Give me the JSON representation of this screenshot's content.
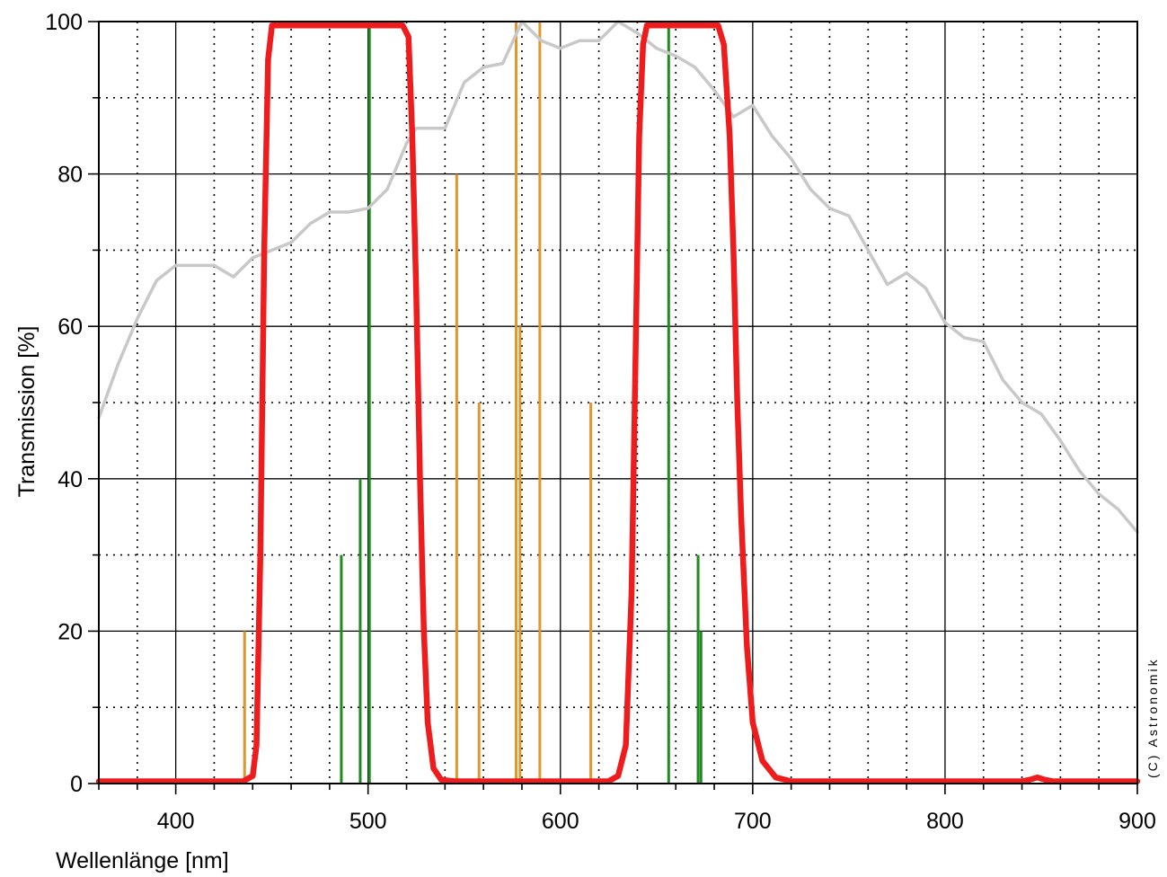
{
  "chart_data": {
    "type": "line",
    "title": "",
    "xlabel": "Wellenlänge [nm]",
    "ylabel": "Transmission [%]",
    "xlim": [
      360,
      900
    ],
    "ylim": [
      0,
      100
    ],
    "x_ticks": [
      400,
      500,
      600,
      700,
      800,
      900
    ],
    "y_ticks": [
      0,
      20,
      40,
      60,
      80,
      100
    ],
    "x_tick_labels": [
      "400",
      "500",
      "600",
      "700",
      "800",
      "900"
    ],
    "y_tick_labels": [
      "0",
      "20",
      "40",
      "60",
      "80",
      "100"
    ],
    "grid": {
      "major": true,
      "minor_dotted": true,
      "x_minor_step": 20,
      "y_minor_step": 10
    },
    "copyright": "(C) Astronomik",
    "colors": {
      "filter": "#ee1c1c",
      "sky_background": "#c8c8c8",
      "emission_orange": "#e0962a",
      "emission_green": "#1f8a1f",
      "grid": "#000000"
    },
    "series": [
      {
        "id": "filter-transmission",
        "x": [
          360,
          435,
          440,
          442,
          444,
          446,
          448,
          450,
          460,
          480,
          500,
          518,
          521,
          523,
          525,
          527,
          529,
          531,
          534,
          538,
          545,
          600,
          625,
          630,
          634,
          637,
          639,
          641,
          643,
          645,
          650,
          670,
          682,
          685,
          688,
          690,
          692,
          694,
          697,
          700,
          705,
          712,
          720,
          760,
          800,
          840,
          844,
          848,
          852,
          856,
          900
        ],
        "y": [
          0.3,
          0.3,
          1,
          5,
          30,
          70,
          95,
          99.5,
          99.5,
          99.5,
          99.5,
          99.5,
          98,
          85,
          65,
          40,
          20,
          8,
          2,
          0.5,
          0.3,
          0.3,
          0.3,
          1,
          5,
          25,
          55,
          85,
          97,
          99.5,
          99.5,
          99.5,
          99.5,
          97,
          85,
          70,
          50,
          35,
          18,
          8,
          3,
          0.8,
          0.3,
          0.3,
          0.3,
          0.3,
          0.5,
          0.8,
          0.5,
          0.3,
          0.3
        ]
      },
      {
        "id": "sky-background",
        "x": [
          360,
          370,
          380,
          390,
          400,
          410,
          420,
          430,
          440,
          450,
          460,
          470,
          480,
          490,
          500,
          510,
          520,
          525,
          530,
          540,
          550,
          560,
          570,
          580,
          590,
          600,
          610,
          620,
          630,
          640,
          650,
          660,
          670,
          680,
          690,
          700,
          710,
          720,
          730,
          740,
          750,
          760,
          770,
          780,
          790,
          800,
          810,
          820,
          830,
          840,
          850,
          860,
          870,
          880,
          890,
          900
        ],
        "y": [
          48,
          55,
          61,
          66,
          68,
          68,
          68,
          66.5,
          69,
          70,
          71,
          73.5,
          75,
          75,
          75.5,
          78,
          84,
          86,
          86,
          86,
          92,
          94,
          94.5,
          100,
          97.5,
          96.5,
          97.5,
          97.5,
          100,
          98.5,
          96.5,
          95.5,
          94,
          91,
          87.5,
          89,
          85,
          82,
          78,
          75.5,
          74.5,
          70,
          65.5,
          67,
          65,
          60.5,
          58.5,
          58,
          53,
          50,
          48.5,
          45,
          41,
          38,
          36,
          33
        ]
      }
    ],
    "emission_lines": [
      {
        "wavelength": 435.8,
        "value": 20,
        "color": "orange"
      },
      {
        "wavelength": 486.1,
        "value": 30,
        "color": "green"
      },
      {
        "wavelength": 495.9,
        "value": 40,
        "color": "green"
      },
      {
        "wavelength": 500.7,
        "value": 100,
        "color": "green"
      },
      {
        "wavelength": 546.1,
        "value": 80,
        "color": "orange"
      },
      {
        "wavelength": 557.7,
        "value": 50,
        "color": "orange"
      },
      {
        "wavelength": 577.0,
        "value": 100,
        "color": "orange"
      },
      {
        "wavelength": 579.0,
        "value": 60,
        "color": "orange"
      },
      {
        "wavelength": 589.3,
        "value": 100,
        "color": "orange"
      },
      {
        "wavelength": 615.8,
        "value": 50,
        "color": "orange"
      },
      {
        "wavelength": 656.3,
        "value": 100,
        "color": "green"
      },
      {
        "wavelength": 671.6,
        "value": 30,
        "color": "green"
      },
      {
        "wavelength": 673.1,
        "value": 20,
        "color": "green"
      }
    ]
  }
}
